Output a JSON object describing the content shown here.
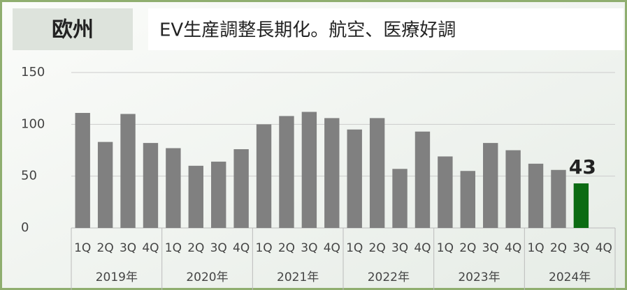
{
  "chart_data": {
    "type": "bar",
    "title": "欧州",
    "subtitle": "EV生産調整長期化。航空、医療好調",
    "categories": [
      "1Q",
      "2Q",
      "3Q",
      "4Q",
      "1Q",
      "2Q",
      "3Q",
      "4Q",
      "1Q",
      "2Q",
      "3Q",
      "4Q",
      "1Q",
      "2Q",
      "3Q",
      "4Q",
      "1Q",
      "2Q",
      "3Q",
      "4Q",
      "1Q",
      "2Q",
      "3Q",
      "4Q"
    ],
    "groups": [
      "2019年",
      "2020年",
      "2021年",
      "2022年",
      "2023年",
      "2024年"
    ],
    "values": [
      111,
      83,
      110,
      82,
      77,
      60,
      64,
      76,
      100,
      108,
      112,
      106,
      95,
      106,
      57,
      93,
      69,
      55,
      82,
      75,
      62,
      56,
      43,
      null
    ],
    "value_labels": [
      null,
      null,
      null,
      null,
      null,
      null,
      null,
      null,
      null,
      null,
      null,
      null,
      null,
      null,
      null,
      null,
      null,
      null,
      null,
      null,
      null,
      null,
      "43",
      null
    ],
    "colors": [
      "#808080",
      "#808080",
      "#808080",
      "#808080",
      "#808080",
      "#808080",
      "#808080",
      "#808080",
      "#808080",
      "#808080",
      "#808080",
      "#808080",
      "#808080",
      "#808080",
      "#808080",
      "#808080",
      "#808080",
      "#808080",
      "#808080",
      "#808080",
      "#808080",
      "#808080",
      "#0b6b12",
      "#808080"
    ],
    "ylim": [
      0,
      150
    ],
    "yticks": [
      0,
      50,
      100,
      150
    ],
    "grid": true
  }
}
